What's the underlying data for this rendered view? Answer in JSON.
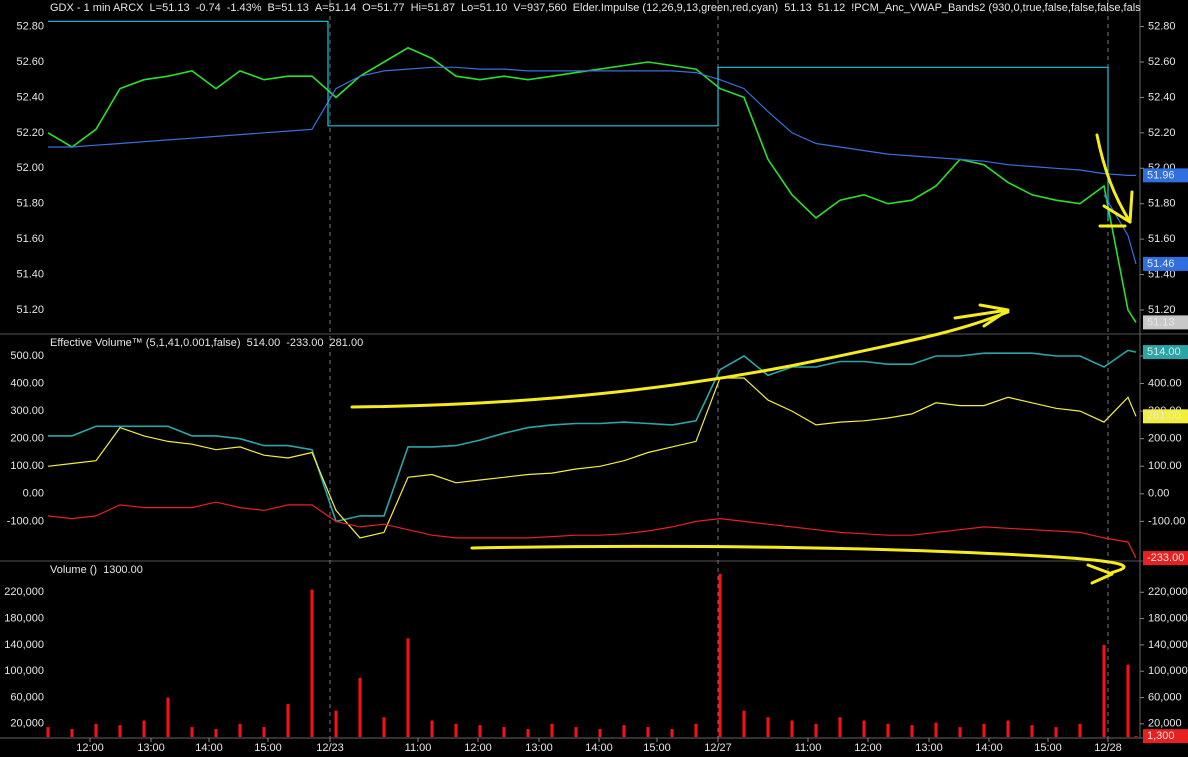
{
  "chart_data": [
    {
      "type": "line",
      "legend_texts": [
        {
          "text": "GDX - 1 min  ARCX",
          "color": "#2be02b"
        },
        {
          "text": "L=51.13",
          "color": "#ff3030"
        },
        {
          "text": "-0.74",
          "color": "#ff3030"
        },
        {
          "text": "-1.43%",
          "color": "#ff3030"
        },
        {
          "text": "B=51.13",
          "color": "#e6e6e6"
        },
        {
          "text": "A=51.14",
          "color": "#e6e6e6"
        },
        {
          "text": "O=51.77",
          "color": "#ff3030"
        },
        {
          "text": "Hi=51.87",
          "color": "#e6e6e6"
        },
        {
          "text": "Lo=51.10",
          "color": "#e6e6e6"
        },
        {
          "text": "V=937,560",
          "color": "#e6e6e6"
        },
        {
          "text": "Elder.Impulse (12,26,9,13,green,red,cyan)",
          "color": "#e6e6e6"
        },
        {
          "text": "51.13",
          "color": "#27d6e6"
        },
        {
          "text": "51.12",
          "color": "#27d6e6"
        },
        {
          "text": "!PCM_Anc_VWAP_Bands2 (930,0,true,false,false,false,fals",
          "color": "#e6e6e6"
        }
      ],
      "x": [
        0,
        24,
        48,
        72,
        96,
        120,
        144,
        168,
        192,
        216,
        240,
        264,
        288,
        312,
        336,
        360,
        384,
        408,
        432,
        456,
        480,
        504,
        528,
        552,
        576,
        600,
        624,
        648,
        672,
        696,
        720,
        744,
        768,
        792,
        816,
        840,
        864,
        888,
        912,
        936,
        960,
        984,
        1008,
        1032,
        1056,
        1080,
        1088
      ],
      "xlim": [
        0,
        1090
      ],
      "ylim": [
        51.07,
        52.95
      ],
      "yticks": [
        {
          "value": 51.2,
          "label": "51.20"
        },
        {
          "value": 51.4,
          "label": "51.40"
        },
        {
          "value": 51.6,
          "label": "51.60"
        },
        {
          "value": 51.8,
          "label": "51.80"
        },
        {
          "value": 52,
          "label": "52.00"
        },
        {
          "value": 52.2,
          "label": "52.20"
        },
        {
          "value": 52.4,
          "label": "52.40"
        },
        {
          "value": 52.6,
          "label": "52.60"
        },
        {
          "value": 52.8,
          "label": "52.80"
        }
      ],
      "series": [
        {
          "color": "#2be02b",
          "values": [
            52.2,
            52.12,
            52.22,
            52.45,
            52.5,
            52.52,
            52.55,
            52.45,
            52.55,
            52.5,
            52.52,
            52.52,
            52.4,
            52.52,
            52.6,
            52.68,
            52.62,
            52.52,
            52.5,
            52.52,
            52.5,
            52.52,
            52.54,
            52.56,
            52.58,
            52.6,
            52.58,
            52.56,
            52.45,
            52.4,
            52.05,
            51.85,
            51.72,
            51.82,
            51.85,
            51.8,
            51.82,
            51.9,
            52.05,
            52.02,
            51.92,
            51.85,
            51.82,
            51.8,
            51.9,
            51.2,
            51.13
          ]
        },
        {
          "color": "#3a6fe0",
          "values": [
            52.12,
            52.12,
            52.13,
            52.14,
            52.15,
            52.16,
            52.17,
            52.18,
            52.19,
            52.2,
            52.21,
            52.22,
            52.45,
            52.52,
            52.55,
            52.56,
            52.57,
            52.57,
            52.56,
            52.56,
            52.55,
            52.55,
            52.55,
            52.55,
            52.55,
            52.55,
            52.55,
            52.54,
            52.5,
            52.45,
            52.32,
            52.2,
            52.14,
            52.12,
            52.1,
            52.08,
            52.07,
            52.06,
            52.05,
            52.04,
            52.02,
            52.01,
            52.0,
            51.99,
            51.97,
            51.96,
            51.96
          ]
        },
        {
          "color": "#3a6fe0",
          "values": [
            null,
            null,
            null,
            null,
            null,
            null,
            null,
            null,
            null,
            null,
            null,
            null,
            null,
            null,
            null,
            null,
            null,
            null,
            null,
            null,
            null,
            null,
            null,
            null,
            null,
            null,
            null,
            null,
            null,
            null,
            null,
            null,
            null,
            null,
            null,
            null,
            null,
            null,
            null,
            null,
            null,
            null,
            null,
            null,
            51.85,
            51.62,
            51.46
          ]
        },
        {
          "color": "#19c9e6",
          "x": [
            0,
            280,
            280,
            670,
            670,
            1060,
            1060
          ],
          "values": [
            52.83,
            52.83,
            52.24,
            52.24,
            52.57,
            52.57,
            51.7
          ]
        }
      ],
      "last_labels": [
        51.96,
        51.46,
        51.13
      ],
      "last_label_colors": [
        "#2f6fe0",
        "#2f6fe0",
        "#c8c8c8"
      ],
      "last_label_text_colors": [
        "#ffffff",
        "#ffffff",
        "#000000"
      ]
    },
    {
      "type": "line",
      "legend_texts": [
        {
          "text": "Effective Volume™ (5,1,41,0.001,false)",
          "color": "#e6e6e6"
        },
        {
          "text": "514.00",
          "color": "#2aa6a6"
        },
        {
          "text": "-233.00",
          "color": "#ff3030"
        },
        {
          "text": "281.00",
          "color": "#f2ef3a"
        }
      ],
      "x": [
        0,
        24,
        48,
        72,
        96,
        120,
        144,
        168,
        192,
        216,
        240,
        264,
        288,
        312,
        336,
        360,
        384,
        408,
        432,
        456,
        480,
        504,
        528,
        552,
        576,
        600,
        624,
        648,
        672,
        696,
        720,
        744,
        768,
        792,
        816,
        840,
        864,
        888,
        912,
        936,
        960,
        984,
        1008,
        1032,
        1056,
        1080,
        1088
      ],
      "xlim": [
        0,
        1090
      ],
      "ylim": [
        -240,
        576
      ],
      "yticks": [
        {
          "value": -100,
          "label": "-100.00"
        },
        {
          "value": 0,
          "label": "0.00"
        },
        {
          "value": 100,
          "label": "100.00"
        },
        {
          "value": 200,
          "label": "200.00"
        },
        {
          "value": 300,
          "label": "300.00"
        },
        {
          "value": 400,
          "label": "400.00"
        },
        {
          "value": 500,
          "label": "500.00"
        }
      ],
      "series": [
        {
          "color": "#2aa6a6",
          "values": [
            210,
            210,
            245,
            245,
            245,
            245,
            210,
            210,
            200,
            175,
            175,
            160,
            -100,
            -80,
            -80,
            170,
            170,
            175,
            195,
            220,
            240,
            250,
            255,
            255,
            260,
            255,
            250,
            265,
            450,
            500,
            430,
            460,
            460,
            480,
            480,
            470,
            470,
            500,
            500,
            510,
            510,
            510,
            500,
            500,
            460,
            520,
            514
          ]
        },
        {
          "color": "#f2ef3a",
          "values": [
            100,
            110,
            120,
            240,
            210,
            190,
            180,
            160,
            170,
            140,
            130,
            150,
            -60,
            -160,
            -140,
            60,
            70,
            40,
            50,
            60,
            70,
            75,
            90,
            100,
            120,
            150,
            170,
            190,
            420,
            420,
            340,
            300,
            250,
            260,
            265,
            275,
            290,
            330,
            320,
            320,
            350,
            330,
            310,
            300,
            260,
            350,
            281
          ]
        },
        {
          "color": "#e82020",
          "values": [
            -80,
            -90,
            -80,
            -40,
            -50,
            -50,
            -50,
            -30,
            -50,
            -60,
            -40,
            -40,
            -100,
            -120,
            -110,
            -130,
            -150,
            -160,
            -160,
            -160,
            -160,
            -155,
            -150,
            -150,
            -145,
            -135,
            -120,
            -100,
            -90,
            -100,
            -110,
            -120,
            -130,
            -140,
            -145,
            -150,
            -150,
            -140,
            -130,
            -120,
            -125,
            -130,
            -135,
            -140,
            -160,
            -175,
            -233
          ]
        }
      ],
      "last_labels": [
        {
          "value": 514,
          "label": "514.00"
        },
        {
          "value": 281,
          "label": "281.00"
        },
        {
          "value": -233,
          "label": "-233.00"
        }
      ],
      "last_label_colors": [
        "#2aa6a6",
        "#f2ef3a",
        "#e82020"
      ],
      "last_label_text_colors": [
        "#000000",
        "#000000",
        "#000000"
      ]
    },
    {
      "type": "bar",
      "legend_texts": [
        {
          "text": "Volume ()",
          "color": "#e6e6e6"
        },
        {
          "text": "1300.00",
          "color": "#ff3030"
        }
      ],
      "x": [
        0,
        24,
        48,
        72,
        96,
        120,
        144,
        168,
        192,
        216,
        240,
        264,
        288,
        312,
        336,
        360,
        384,
        408,
        432,
        456,
        480,
        504,
        528,
        552,
        576,
        600,
        624,
        648,
        672,
        696,
        720,
        744,
        768,
        792,
        816,
        840,
        864,
        888,
        912,
        936,
        960,
        984,
        1008,
        1032,
        1056,
        1080,
        1088
      ],
      "xlim": [
        0,
        1090
      ],
      "ylim": [
        0,
        266000
      ],
      "color": "#ff1010",
      "yticks": [
        {
          "value": 20000,
          "label": "20,000"
        },
        {
          "value": 60000,
          "label": "60,000"
        },
        {
          "value": 100000,
          "label": "100,000"
        },
        {
          "value": 140000,
          "label": "140,000"
        },
        {
          "value": 180000,
          "label": "180,000"
        },
        {
          "value": 220000,
          "label": "220,000"
        }
      ],
      "values": [
        15000,
        12000,
        20000,
        18000,
        25000,
        60000,
        15000,
        12000,
        20000,
        15000,
        50000,
        224000,
        40000,
        90000,
        30000,
        150000,
        25000,
        20000,
        18000,
        15000,
        12000,
        20000,
        15000,
        12000,
        18000,
        15000,
        12000,
        20000,
        248000,
        40000,
        30000,
        25000,
        20000,
        30000,
        25000,
        20000,
        18000,
        22000,
        15000,
        20000,
        25000,
        18000,
        15000,
        20000,
        140000,
        110000,
        1300
      ],
      "xticks": [
        {
          "value": 42,
          "label": "12:00"
        },
        {
          "value": 103,
          "label": "13:00"
        },
        {
          "value": 161,
          "label": "14:00"
        },
        {
          "value": 220,
          "label": "15:00"
        },
        {
          "value": 282,
          "label": "12/23"
        },
        {
          "value": 370,
          "label": "11:00"
        },
        {
          "value": 430,
          "label": "12:00"
        },
        {
          "value": 491,
          "label": "13:00"
        },
        {
          "value": 551,
          "label": "14:00"
        },
        {
          "value": 609,
          "label": "15:00"
        },
        {
          "value": 670,
          "label": "12/27"
        },
        {
          "value": 760,
          "label": "11:00"
        },
        {
          "value": 820,
          "label": "12:00"
        },
        {
          "value": 881,
          "label": "13:00"
        },
        {
          "value": 941,
          "label": "14:00"
        },
        {
          "value": 1000,
          "label": "15:00"
        },
        {
          "value": 1060,
          "label": "12/28"
        }
      ],
      "last_labels": [
        {
          "value": 1300,
          "label": "1,300"
        }
      ],
      "last_label_colors": [
        "#e82020"
      ],
      "last_label_text_colors": [
        "#000000"
      ]
    }
  ]
}
